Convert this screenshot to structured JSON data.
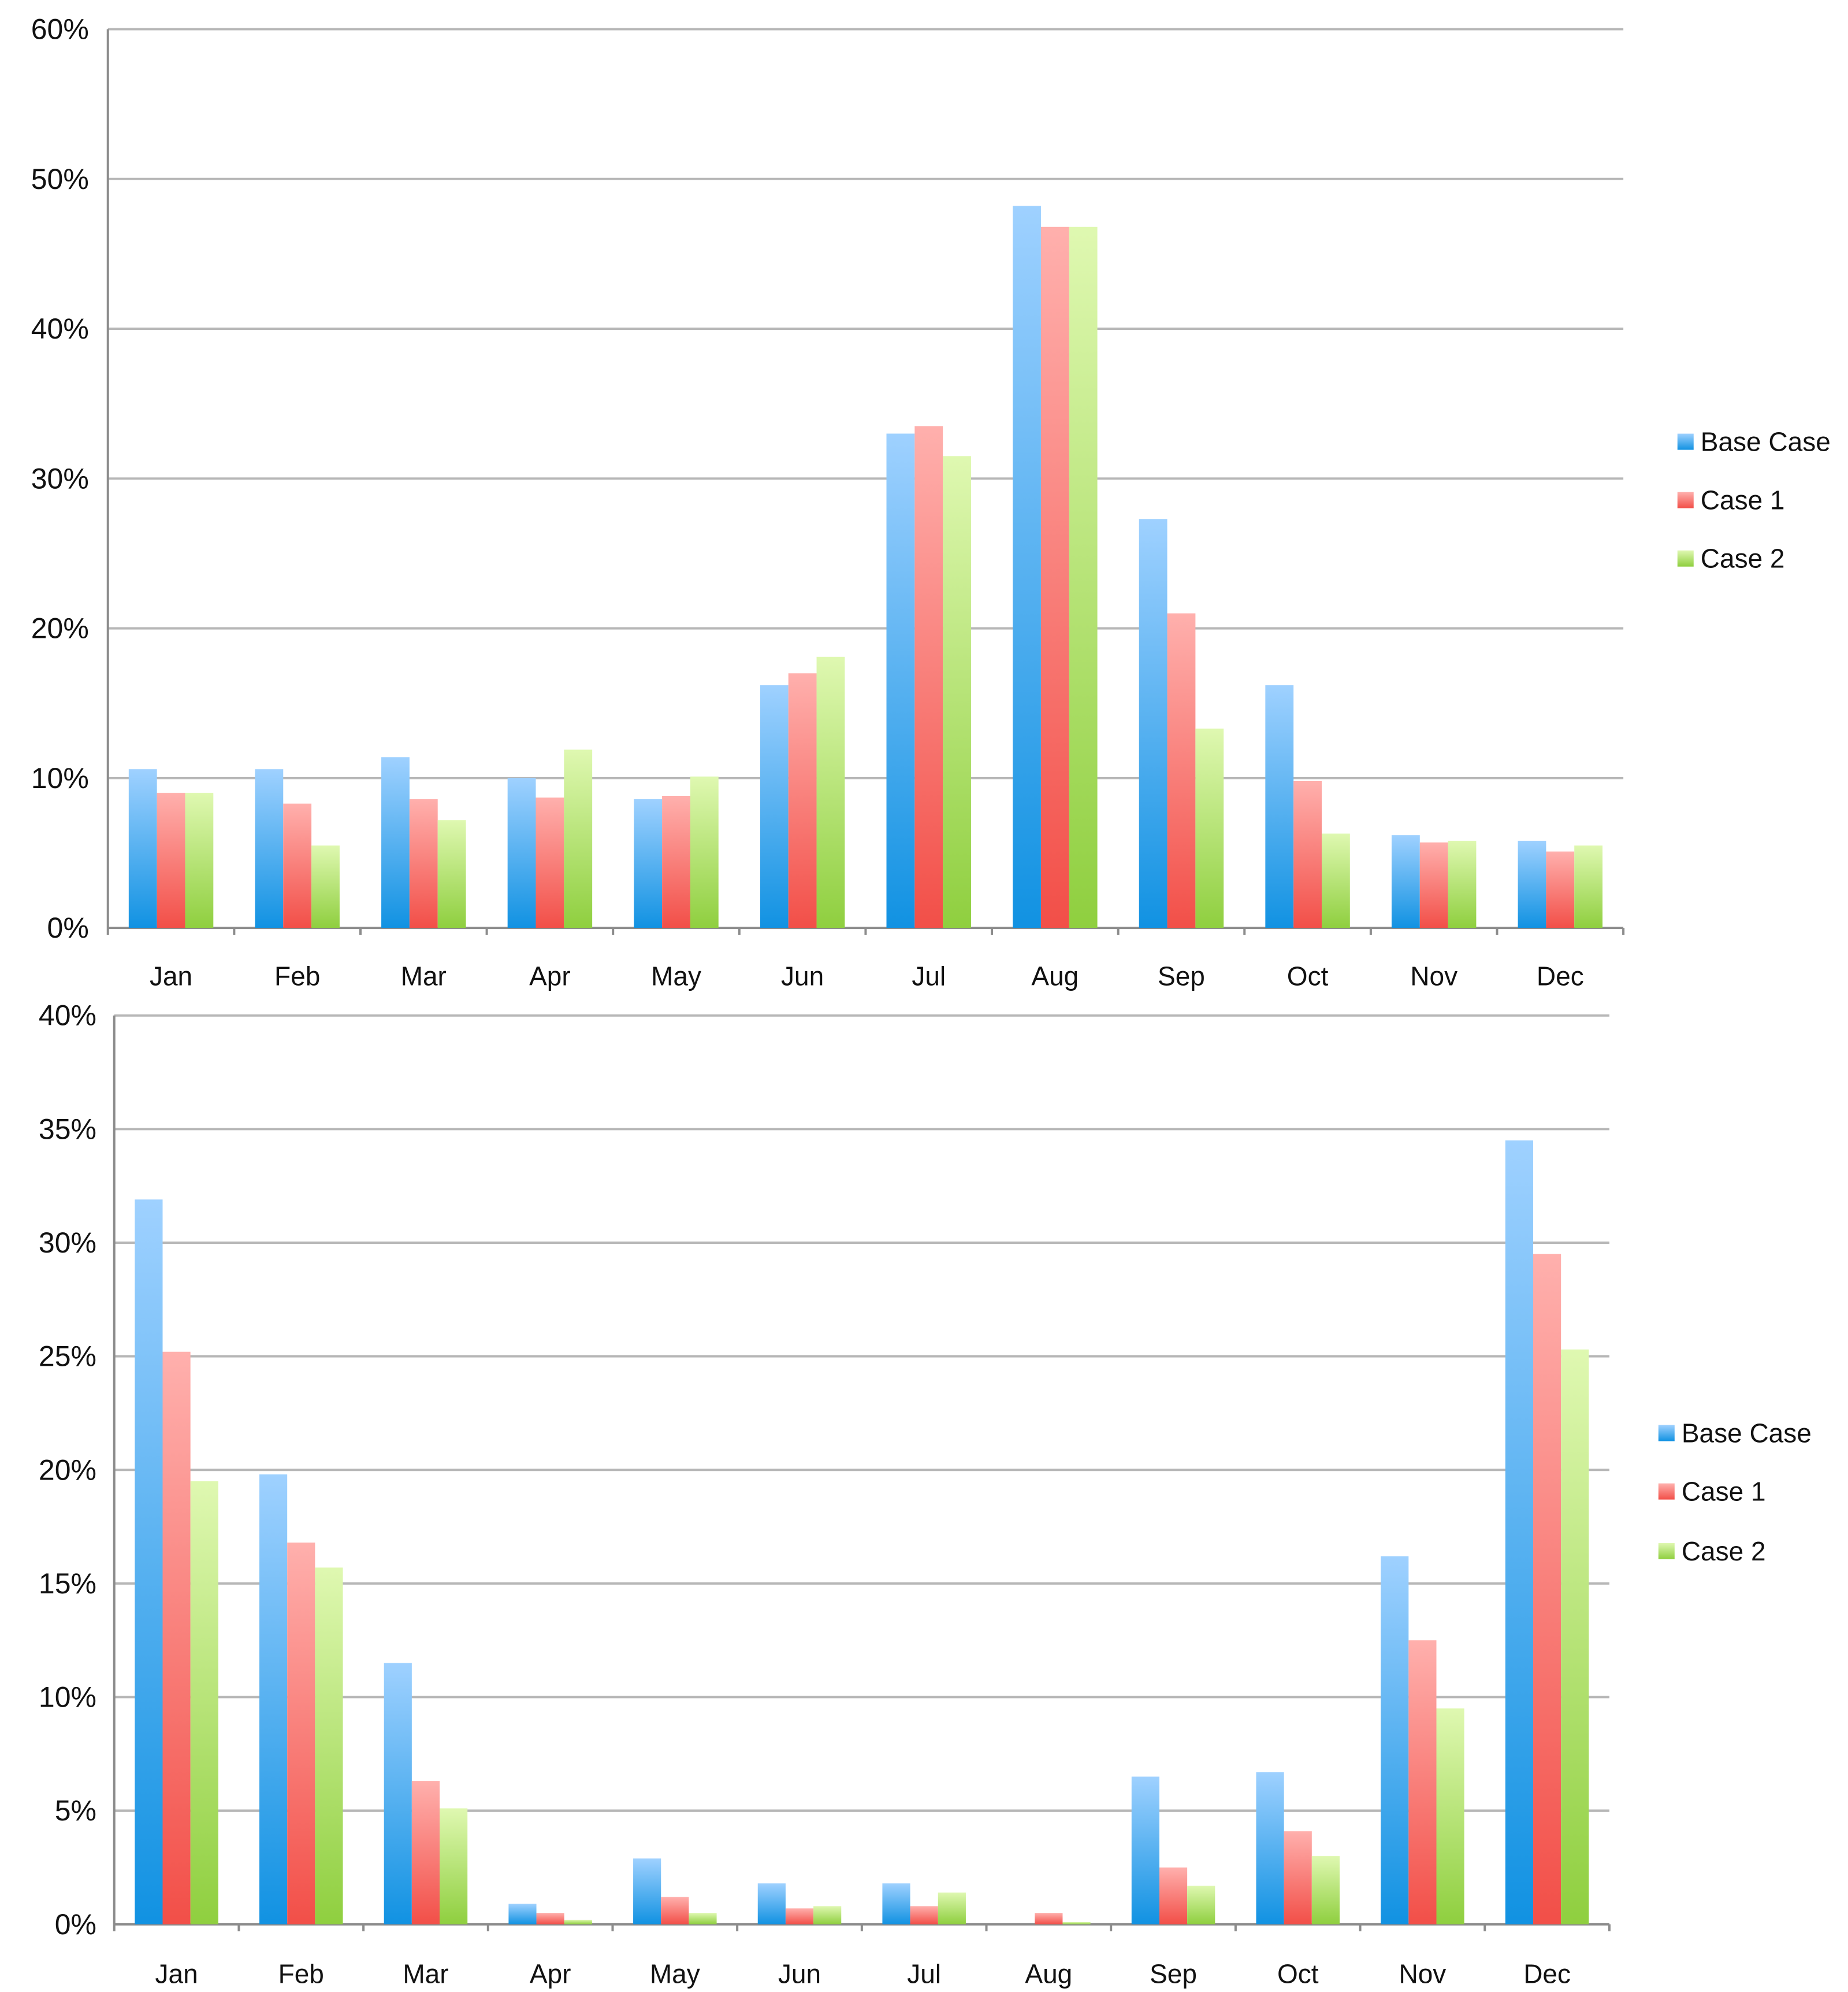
{
  "chart_data": [
    {
      "type": "bar",
      "categories": [
        "Jan",
        "Feb",
        "Mar",
        "Apr",
        "May",
        "Jun",
        "Jul",
        "Aug",
        "Sep",
        "Oct",
        "Nov",
        "Dec"
      ],
      "ylim": [
        0,
        60
      ],
      "yticks": [
        0,
        10,
        20,
        30,
        40,
        50,
        60
      ],
      "ytick_labels": [
        "0%",
        "10%",
        "20%",
        "30%",
        "40%",
        "50%",
        "60%"
      ],
      "grid": true,
      "legend_position": "right",
      "series": [
        {
          "name": "Base Case",
          "values": [
            10.6,
            10.6,
            11.4,
            10.0,
            8.6,
            16.2,
            33.0,
            48.2,
            27.3,
            16.2,
            6.2,
            5.8
          ]
        },
        {
          "name": "Case 1",
          "values": [
            9.0,
            8.3,
            8.6,
            8.7,
            8.8,
            17.0,
            33.5,
            46.8,
            21.0,
            9.8,
            5.7,
            5.1
          ]
        },
        {
          "name": "Case 2",
          "values": [
            9.0,
            5.5,
            7.2,
            11.9,
            10.1,
            18.1,
            31.5,
            46.8,
            13.3,
            6.3,
            5.8,
            5.5
          ]
        }
      ]
    },
    {
      "type": "bar",
      "categories": [
        "Jan",
        "Feb",
        "Mar",
        "Apr",
        "May",
        "Jun",
        "Jul",
        "Aug",
        "Sep",
        "Oct",
        "Nov",
        "Dec"
      ],
      "ylim": [
        0,
        40
      ],
      "yticks": [
        0,
        5,
        10,
        15,
        20,
        25,
        30,
        35,
        40
      ],
      "ytick_labels": [
        "0%",
        "5%",
        "10%",
        "15%",
        "20%",
        "25%",
        "30%",
        "35%",
        "40%"
      ],
      "grid": true,
      "legend_position": "right",
      "series": [
        {
          "name": "Base Case",
          "values": [
            31.9,
            19.8,
            11.5,
            0.9,
            2.9,
            1.8,
            1.8,
            0.0,
            6.5,
            6.7,
            16.2,
            34.5
          ]
        },
        {
          "name": "Case 1",
          "values": [
            25.2,
            16.8,
            6.3,
            0.5,
            1.2,
            0.7,
            0.8,
            0.5,
            2.5,
            4.1,
            12.5,
            29.5
          ]
        },
        {
          "name": "Case 2",
          "values": [
            19.5,
            15.7,
            5.1,
            0.2,
            0.5,
            0.8,
            1.4,
            0.1,
            1.7,
            3.0,
            9.5,
            25.3
          ]
        }
      ]
    }
  ],
  "colors": {
    "base": {
      "light": "#9fd1ff",
      "dark": "#1192e2"
    },
    "case1": {
      "light": "#ffb0ad",
      "dark": "#f24f48"
    },
    "case2": {
      "light": "#dff8b1",
      "dark": "#8fcf3f"
    }
  }
}
